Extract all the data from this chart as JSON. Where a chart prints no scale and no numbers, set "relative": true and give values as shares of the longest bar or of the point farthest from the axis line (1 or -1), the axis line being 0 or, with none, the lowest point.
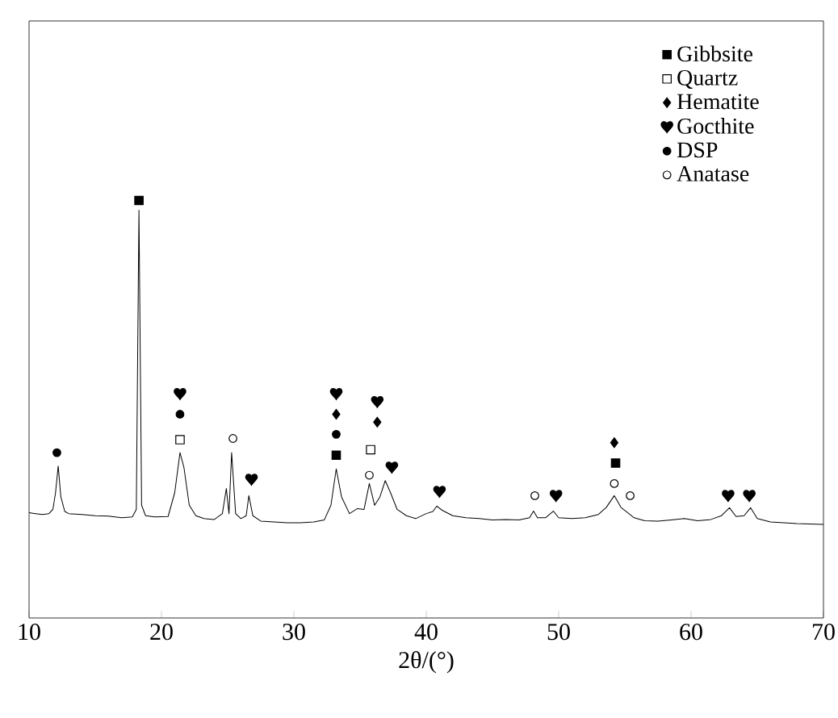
{
  "chart_data": {
    "type": "line",
    "relative": true,
    "xlabel": "2θ/(°)",
    "xlim": [
      10,
      70
    ],
    "xticks": [
      10,
      20,
      30,
      40,
      50,
      60,
      70
    ],
    "legend": "top right",
    "grid": false,
    "series": [
      {
        "color": "#000000",
        "x": [
          10,
          10.5,
          11,
          11.5,
          11.8,
          12.0,
          12.2,
          12.4,
          12.7,
          13,
          14,
          15,
          16,
          17,
          17.8,
          18.1,
          18.3,
          18.5,
          18.8,
          19.5,
          20.5,
          21.0,
          21.4,
          21.7,
          22.1,
          22.6,
          23.2,
          24,
          24.6,
          24.9,
          25.1,
          25.3,
          25.6,
          26,
          26.4,
          26.6,
          26.9,
          27.5,
          28.5,
          29.5,
          30.5,
          31.5,
          32.3,
          32.8,
          33.2,
          33.6,
          34.2,
          34.8,
          35.3,
          35.7,
          36.1,
          36.5,
          36.9,
          37.3,
          37.8,
          38.5,
          39.2,
          40,
          40.5,
          40.8,
          41.2,
          42,
          43,
          44,
          45,
          46,
          47,
          47.8,
          48.1,
          48.4,
          49,
          49.6,
          50,
          51,
          52,
          53,
          53.6,
          54.2,
          54.7,
          55.3,
          55.7,
          56.5,
          57.5,
          58.5,
          59.5,
          60.5,
          61.5,
          62.3,
          62.9,
          63.4,
          64,
          64.5,
          65,
          66,
          67,
          68,
          69,
          70
        ],
        "values": [
          0.252,
          0.25,
          0.248,
          0.25,
          0.26,
          0.3,
          0.364,
          0.29,
          0.255,
          0.25,
          0.248,
          0.245,
          0.244,
          0.24,
          0.242,
          0.26,
          0.977,
          0.27,
          0.245,
          0.242,
          0.243,
          0.3,
          0.396,
          0.36,
          0.27,
          0.245,
          0.238,
          0.236,
          0.25,
          0.31,
          0.25,
          0.396,
          0.25,
          0.238,
          0.245,
          0.293,
          0.245,
          0.232,
          0.23,
          0.228,
          0.228,
          0.23,
          0.235,
          0.27,
          0.357,
          0.29,
          0.25,
          0.262,
          0.26,
          0.322,
          0.27,
          0.29,
          0.329,
          0.3,
          0.26,
          0.245,
          0.238,
          0.25,
          0.255,
          0.268,
          0.258,
          0.245,
          0.24,
          0.238,
          0.235,
          0.236,
          0.235,
          0.24,
          0.256,
          0.24,
          0.24,
          0.256,
          0.24,
          0.238,
          0.24,
          0.248,
          0.265,
          0.293,
          0.265,
          0.25,
          0.24,
          0.233,
          0.232,
          0.235,
          0.238,
          0.233,
          0.236,
          0.245,
          0.264,
          0.243,
          0.245,
          0.264,
          0.238,
          0.23,
          0.228,
          0.226,
          0.225,
          0.224
        ]
      },
      {
        "type": "scatter",
        "name": "Gibbsite",
        "marker": "square",
        "color": "#000000",
        "x": [
          18.3,
          33.2,
          54.3
        ],
        "values": [
          1.0,
          0.39,
          0.371
        ]
      },
      {
        "type": "scatter",
        "name": "Quartz",
        "marker": "square",
        "color": "#ffffff",
        "x": [
          21.4,
          35.8
        ],
        "values": [
          0.427,
          0.403
        ]
      },
      {
        "type": "scatter",
        "name": "Hematite",
        "marker": "diamond",
        "color": "#000000",
        "x": [
          33.2,
          36.3,
          54.2
        ],
        "values": [
          0.488,
          0.469,
          0.42
        ]
      },
      {
        "type": "scatter",
        "name": "Gocthite",
        "color": "#000000",
        "x": [
          21.4,
          26.8,
          33.2,
          36.3,
          37.4,
          41.0,
          49.8,
          62.8,
          64.4
        ],
        "values": [
          0.537,
          0.332,
          0.537,
          0.518,
          0.361,
          0.303,
          0.293,
          0.293,
          0.293
        ]
      },
      {
        "type": "scatter",
        "name": "DSP",
        "marker": "circle",
        "color": "#000000",
        "x": [
          12.1,
          21.4,
          33.2
        ],
        "values": [
          0.396,
          0.488,
          0.44
        ]
      },
      {
        "type": "scatter",
        "name": "Anatase",
        "marker": "circle",
        "color": "#ffffff",
        "x": [
          25.4,
          35.7,
          48.2,
          54.2,
          55.4
        ],
        "values": [
          0.43,
          0.342,
          0.293,
          0.322,
          0.293
        ]
      }
    ]
  }
}
